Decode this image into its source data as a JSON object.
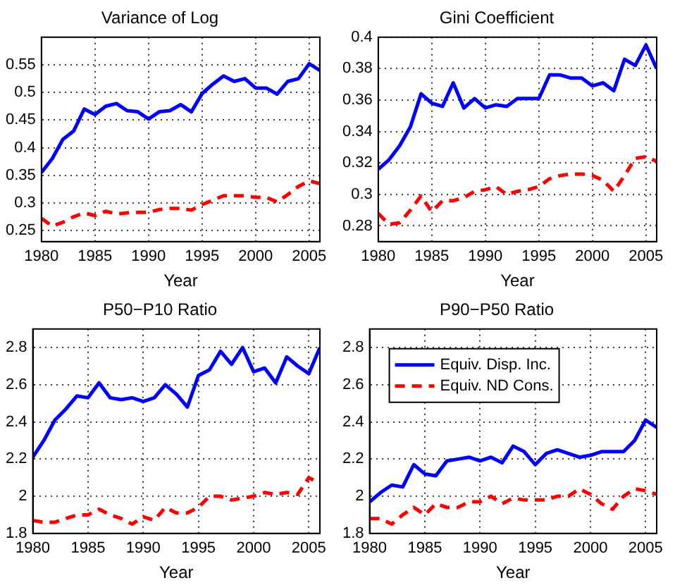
{
  "chart_data": [
    {
      "type": "line",
      "title": "Variance of Log",
      "xlabel": "Year",
      "x": [
        1980,
        1981,
        1982,
        1983,
        1984,
        1985,
        1986,
        1987,
        1988,
        1989,
        1990,
        1991,
        1992,
        1993,
        1994,
        1995,
        1996,
        1997,
        1998,
        1999,
        2000,
        2001,
        2002,
        2003,
        2004,
        2005,
        2006
      ],
      "xlim": [
        1980,
        2006
      ],
      "xticks": [
        1980,
        1985,
        1990,
        1995,
        2000,
        2005
      ],
      "ylim": [
        0.23,
        0.6
      ],
      "yticks": [
        0.25,
        0.3,
        0.35,
        0.4,
        0.45,
        0.5,
        0.55
      ],
      "grid": true,
      "legend": false,
      "series": [
        {
          "color": "#0000ff",
          "line_style": "solid",
          "values": [
            0.355,
            0.38,
            0.415,
            0.43,
            0.47,
            0.46,
            0.475,
            0.48,
            0.467,
            0.465,
            0.452,
            0.465,
            0.467,
            0.478,
            0.465,
            0.498,
            0.515,
            0.53,
            0.52,
            0.525,
            0.508,
            0.508,
            0.497,
            0.52,
            0.525,
            0.552,
            0.54
          ]
        },
        {
          "color": "#ff0000",
          "line_style": "dashed",
          "values": [
            0.272,
            0.258,
            0.265,
            0.275,
            0.282,
            0.277,
            0.285,
            0.28,
            0.282,
            0.283,
            0.283,
            0.288,
            0.29,
            0.29,
            0.287,
            0.297,
            0.305,
            0.313,
            0.313,
            0.313,
            0.31,
            0.31,
            0.302,
            0.315,
            0.33,
            0.34,
            0.335
          ]
        }
      ]
    },
    {
      "type": "line",
      "title": "Gini Coefficient",
      "xlabel": "Year",
      "x": [
        1980,
        1981,
        1982,
        1983,
        1984,
        1985,
        1986,
        1987,
        1988,
        1989,
        1990,
        1991,
        1992,
        1993,
        1994,
        1995,
        1996,
        1997,
        1998,
        1999,
        2000,
        2001,
        2002,
        2003,
        2004,
        2005,
        2006
      ],
      "xlim": [
        1980,
        2006
      ],
      "xticks": [
        1980,
        1985,
        1990,
        1995,
        2000,
        2005
      ],
      "ylim": [
        0.27,
        0.4
      ],
      "yticks": [
        0.28,
        0.3,
        0.32,
        0.34,
        0.36,
        0.38,
        0.4
      ],
      "grid": true,
      "legend": false,
      "series": [
        {
          "color": "#0000ff",
          "line_style": "solid",
          "values": [
            0.316,
            0.322,
            0.331,
            0.343,
            0.364,
            0.358,
            0.356,
            0.371,
            0.355,
            0.361,
            0.355,
            0.357,
            0.356,
            0.361,
            0.361,
            0.361,
            0.376,
            0.376,
            0.374,
            0.374,
            0.369,
            0.371,
            0.366,
            0.386,
            0.382,
            0.395,
            0.38
          ]
        },
        {
          "color": "#ff0000",
          "line_style": "dashed",
          "values": [
            0.288,
            0.281,
            0.282,
            0.29,
            0.299,
            0.289,
            0.296,
            0.296,
            0.298,
            0.302,
            0.303,
            0.305,
            0.3,
            0.302,
            0.303,
            0.305,
            0.31,
            0.312,
            0.313,
            0.313,
            0.312,
            0.309,
            0.302,
            0.312,
            0.323,
            0.324,
            0.321
          ]
        }
      ]
    },
    {
      "type": "line",
      "title": "P50−P10 Ratio",
      "xlabel": "Year",
      "x": [
        1980,
        1981,
        1982,
        1983,
        1984,
        1985,
        1986,
        1987,
        1988,
        1989,
        1990,
        1991,
        1992,
        1993,
        1994,
        1995,
        1996,
        1997,
        1998,
        1999,
        2000,
        2001,
        2002,
        2003,
        2004,
        2005,
        2006
      ],
      "xlim": [
        1980,
        2006
      ],
      "xticks": [
        1980,
        1985,
        1990,
        1995,
        2000,
        2005
      ],
      "ylim": [
        1.8,
        2.9
      ],
      "yticks": [
        1.8,
        2,
        2.2,
        2.4,
        2.6,
        2.8
      ],
      "grid": true,
      "legend": false,
      "series": [
        {
          "color": "#0000ff",
          "line_style": "solid",
          "values": [
            2.21,
            2.3,
            2.41,
            2.47,
            2.54,
            2.53,
            2.61,
            2.53,
            2.52,
            2.53,
            2.51,
            2.53,
            2.6,
            2.55,
            2.48,
            2.65,
            2.68,
            2.78,
            2.71,
            2.8,
            2.67,
            2.69,
            2.61,
            2.75,
            2.7,
            2.66,
            2.8
          ]
        },
        {
          "color": "#ff0000",
          "line_style": "dashed",
          "values": [
            1.87,
            1.86,
            1.86,
            1.88,
            1.9,
            1.9,
            1.93,
            1.9,
            1.88,
            1.85,
            1.89,
            1.87,
            1.94,
            1.91,
            1.91,
            1.94,
            2.0,
            2.0,
            1.98,
            1.99,
            2.0,
            2.02,
            2.01,
            2.02,
            2.01,
            2.1,
            2.07
          ]
        }
      ]
    },
    {
      "type": "line",
      "title": "P90−P50 Ratio",
      "xlabel": "Year",
      "x": [
        1980,
        1981,
        1982,
        1983,
        1984,
        1985,
        1986,
        1987,
        1988,
        1989,
        1990,
        1991,
        1992,
        1993,
        1994,
        1995,
        1996,
        1997,
        1998,
        1999,
        2000,
        2001,
        2002,
        2003,
        2004,
        2005,
        2006
      ],
      "xlim": [
        1980,
        2006
      ],
      "xticks": [
        1980,
        1985,
        1990,
        1995,
        2000,
        2005
      ],
      "ylim": [
        1.8,
        2.9
      ],
      "yticks": [
        1.8,
        2,
        2.2,
        2.4,
        2.6,
        2.8
      ],
      "grid": true,
      "legend": "top left",
      "series": [
        {
          "name": "Equiv. Disp. Inc.",
          "color": "#0000ff",
          "line_style": "solid",
          "values": [
            1.97,
            2.02,
            2.06,
            2.05,
            2.17,
            2.12,
            2.11,
            2.19,
            2.2,
            2.21,
            2.19,
            2.21,
            2.18,
            2.27,
            2.24,
            2.17,
            2.23,
            2.25,
            2.23,
            2.21,
            2.22,
            2.24,
            2.24,
            2.24,
            2.3,
            2.41,
            2.37
          ]
        },
        {
          "name": "Equiv. ND Cons.",
          "color": "#ff0000",
          "line_style": "dashed",
          "values": [
            1.88,
            1.88,
            1.85,
            1.9,
            1.94,
            1.9,
            1.96,
            1.94,
            1.94,
            1.97,
            1.97,
            2.0,
            1.96,
            1.99,
            1.98,
            1.98,
            1.98,
            2.0,
            2.0,
            2.04,
            2.01,
            1.96,
            1.93,
            2.0,
            2.04,
            2.03,
            2.01
          ]
        }
      ]
    }
  ]
}
